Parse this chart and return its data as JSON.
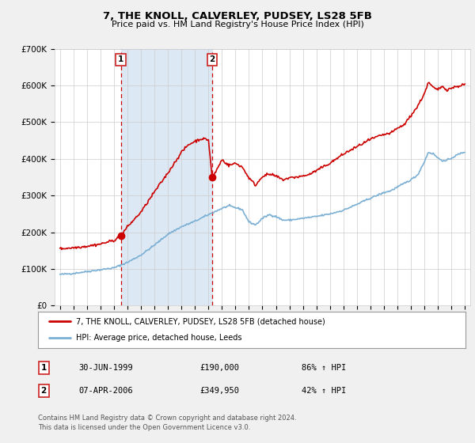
{
  "title": "7, THE KNOLL, CALVERLEY, PUDSEY, LS28 5FB",
  "subtitle": "Price paid vs. HM Land Registry's House Price Index (HPI)",
  "legend_line1": "7, THE KNOLL, CALVERLEY, PUDSEY, LS28 5FB (detached house)",
  "legend_line2": "HPI: Average price, detached house, Leeds",
  "sale1_date": "30-JUN-1999",
  "sale1_price": "£190,000",
  "sale1_hpi": "86% ↑ HPI",
  "sale2_date": "07-APR-2006",
  "sale2_price": "£349,950",
  "sale2_hpi": "42% ↑ HPI",
  "footnote1": "Contains HM Land Registry data © Crown copyright and database right 2024.",
  "footnote2": "This data is licensed under the Open Government Licence v3.0.",
  "sale1_year": 1999.5,
  "sale2_year": 2006.27,
  "sale1_value": 190000,
  "sale2_value": 349950,
  "red_color": "#cc0000",
  "blue_color": "#7bafd4",
  "shaded_color": "#dce9f5",
  "background_color": "#f0f0f0",
  "plot_bg_color": "#ffffff",
  "ylim": [
    0,
    700000
  ],
  "xlim_start": 1994.6,
  "xlim_end": 2025.4
}
